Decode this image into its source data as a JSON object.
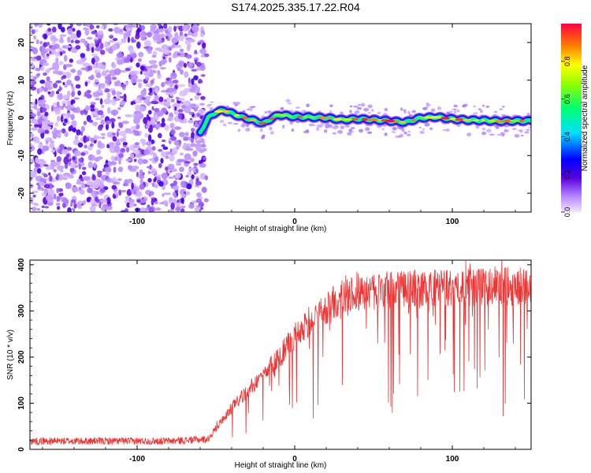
{
  "title": "S174.2025.335.17.22.R04",
  "chart_data": [
    {
      "type": "heatmap",
      "xlabel": "Height of straight line (km)",
      "ylabel": "Frequency (Hz)",
      "xlim": [
        -168,
        150
      ],
      "ylim": [
        -25,
        25
      ],
      "xticks": [
        -100,
        0,
        100
      ],
      "yticks": [
        20,
        10,
        0,
        -10,
        -20
      ],
      "noise_region_x": [
        -168,
        -56
      ],
      "signal_ridge": {
        "x": [
          -60,
          -55,
          -50,
          -45,
          -40,
          -35,
          -30,
          -25,
          -20,
          -15,
          -10,
          -5,
          0,
          10,
          20,
          30,
          40,
          50,
          60,
          70,
          80,
          90,
          100,
          110,
          120,
          130,
          140,
          150
        ],
        "freq": [
          -4,
          0,
          1.5,
          2,
          1.2,
          0.4,
          -0.2,
          -0.8,
          -1.5,
          -0.2,
          0.8,
          0.6,
          0.3,
          0.2,
          0.0,
          -0.5,
          -0.3,
          -0.5,
          -0.8,
          -1.2,
          0.0,
          0.2,
          -0.3,
          -0.6,
          -0.7,
          -0.9,
          -0.8,
          -0.8
        ]
      },
      "colorbar": {
        "label": "Normalized spectral amplitude",
        "range": [
          0,
          1
        ],
        "ticks": [
          "0.0",
          "0.2",
          "0.4",
          "0.6",
          "0.8"
        ]
      }
    },
    {
      "type": "line",
      "xlabel": "Height of straight line (km)",
      "ylabel": "SNR (10 * v/v)",
      "xlim": [
        -168,
        150
      ],
      "ylim": [
        0,
        410
      ],
      "xticks": [
        -100,
        0,
        100
      ],
      "yticks": [
        0,
        100,
        200,
        300,
        400
      ],
      "series": [
        {
          "name": "SNR",
          "color": "#ee3333",
          "trend_x": [
            -168,
            -120,
            -80,
            -55,
            -45,
            -35,
            -20,
            -10,
            0,
            10,
            20,
            30,
            40,
            60,
            80,
            100,
            120,
            150
          ],
          "trend_y": [
            18,
            18,
            18,
            22,
            70,
            110,
            160,
            200,
            245,
            280,
            305,
            325,
            340,
            345,
            348,
            350,
            352,
            355
          ]
        }
      ]
    }
  ]
}
